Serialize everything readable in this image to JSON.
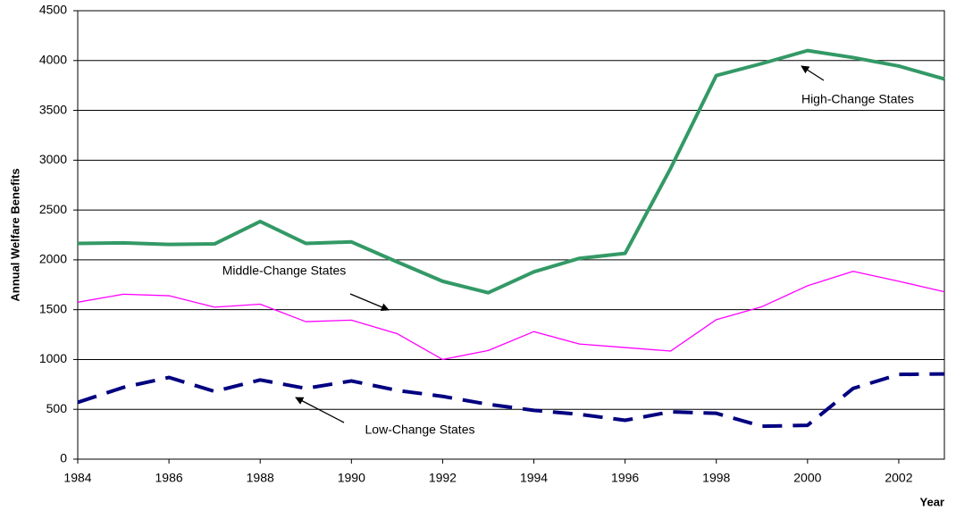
{
  "chart_data": {
    "type": "line",
    "x": [
      1984,
      1985,
      1986,
      1987,
      1988,
      1989,
      1990,
      1991,
      1992,
      1993,
      1994,
      1995,
      1996,
      1997,
      1998,
      1999,
      2000,
      2001,
      2002,
      2003
    ],
    "series": [
      {
        "name": "High-Change States",
        "color": "#339966",
        "width": 4,
        "dashed": false,
        "values": [
          2165,
          2170,
          2155,
          2160,
          2385,
          2165,
          2180,
          1980,
          1785,
          1670,
          1880,
          2015,
          2065,
          2920,
          3850,
          3970,
          4100,
          4030,
          3945,
          3815
        ]
      },
      {
        "name": "Middle-Change States",
        "color": "#ff00ff",
        "width": 1.3,
        "dashed": false,
        "values": [
          1575,
          1655,
          1640,
          1525,
          1555,
          1380,
          1395,
          1260,
          1000,
          1090,
          1280,
          1155,
          1120,
          1085,
          1400,
          1530,
          1740,
          1885,
          1785,
          1680
        ]
      },
      {
        "name": "Low-Change States",
        "color": "#000080",
        "width": 4,
        "dashed": true,
        "values": [
          570,
          720,
          820,
          680,
          795,
          710,
          785,
          690,
          630,
          550,
          490,
          450,
          390,
          475,
          460,
          330,
          340,
          710,
          850,
          855
        ]
      }
    ],
    "y_label": "Annual Welfare Benefits",
    "x_label": "Year",
    "xlim": [
      1984,
      2003
    ],
    "xticks": [
      1984,
      1986,
      1988,
      1990,
      1992,
      1994,
      1996,
      1998,
      2000,
      2002
    ],
    "ylim": [
      0,
      4500
    ],
    "yticks": [
      0,
      500,
      1000,
      1500,
      2000,
      2500,
      3000,
      3500,
      4000,
      4500
    ],
    "grid": true
  }
}
